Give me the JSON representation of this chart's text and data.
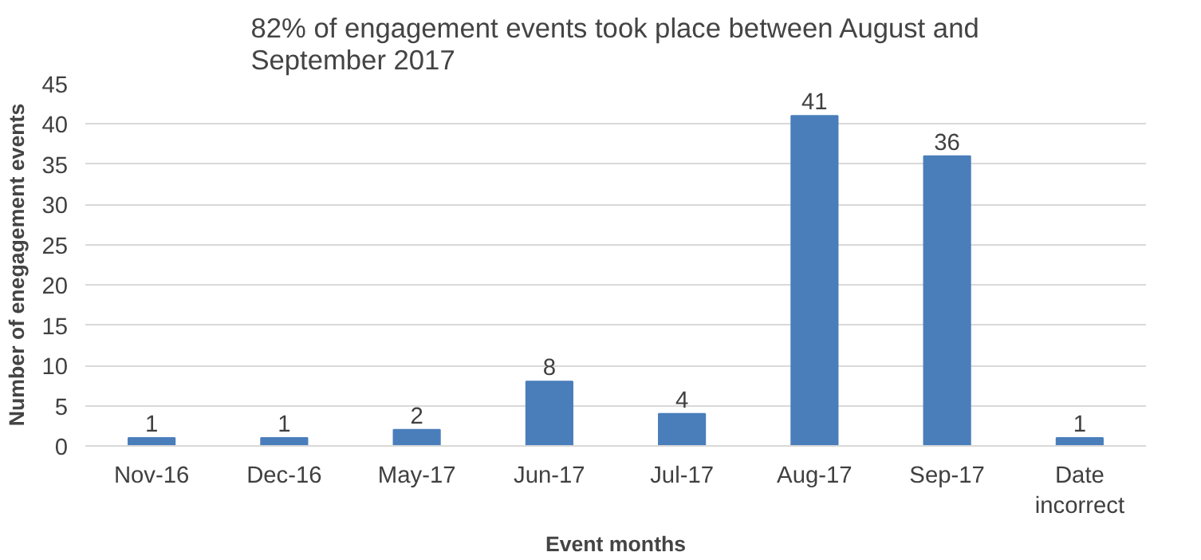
{
  "chart_data": {
    "type": "bar",
    "title": "82% of engagement events took place between August and September 2017",
    "xlabel": "Event months",
    "ylabel": "Number of enegagement events",
    "categories": [
      "Nov-16",
      "Dec-16",
      "May-17",
      "Jun-17",
      "Jul-17",
      "Aug-17",
      "Sep-17",
      "Date incorrect"
    ],
    "values": [
      1,
      1,
      2,
      8,
      4,
      41,
      36,
      1
    ],
    "color": "#4a7ebb",
    "ylim": [
      0,
      45
    ],
    "yticks": [
      0,
      5,
      10,
      15,
      20,
      25,
      30,
      35,
      40,
      45
    ],
    "grid": "y",
    "data_labels": true
  }
}
